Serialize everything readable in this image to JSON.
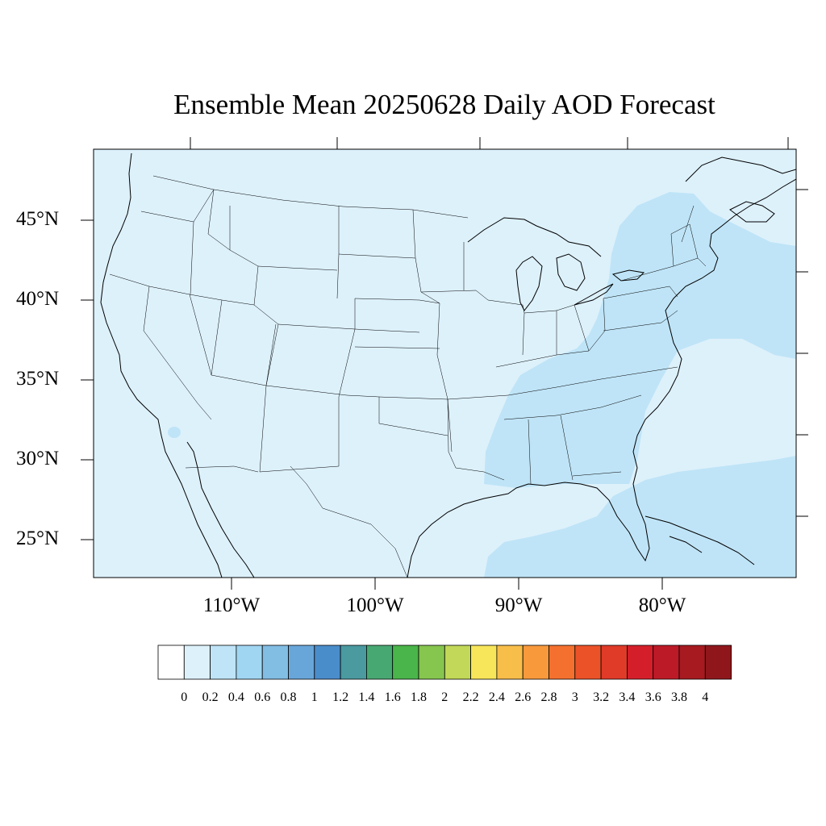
{
  "title": "Ensemble Mean 20250628 Daily AOD Forecast",
  "map": {
    "lat_labels": [
      "45°N",
      "40°N",
      "35°N",
      "30°N",
      "25°N"
    ],
    "lon_labels": [
      "110°W",
      "100°W",
      "90°W",
      "80°W"
    ],
    "colors": {
      "background_low": "#ddf1fb",
      "background_mid": "#bfe4f7",
      "boundary": "#000000"
    },
    "layers": [
      "coastlines",
      "us-state-boundaries",
      "aod-shading"
    ]
  },
  "colorbar": {
    "levels": [
      "0",
      "0.2",
      "0.4",
      "0.6",
      "0.8",
      "1",
      "1.2",
      "1.4",
      "1.6",
      "1.8",
      "2",
      "2.2",
      "2.4",
      "2.6",
      "2.8",
      "3",
      "3.2",
      "3.4",
      "3.6",
      "3.8",
      "4"
    ],
    "colors": [
      "#ffffff",
      "#ddf1fb",
      "#bfe4f7",
      "#a0d6f2",
      "#82bde4",
      "#68a6da",
      "#4a8dcb",
      "#4a9aa0",
      "#48a872",
      "#4ab54a",
      "#86c54e",
      "#c2d858",
      "#f7e65a",
      "#f8be4a",
      "#f8993c",
      "#f4702e",
      "#ec5228",
      "#e03a28",
      "#d41f2a",
      "#bd1a27",
      "#a61a20",
      "#8f171c"
    ]
  }
}
